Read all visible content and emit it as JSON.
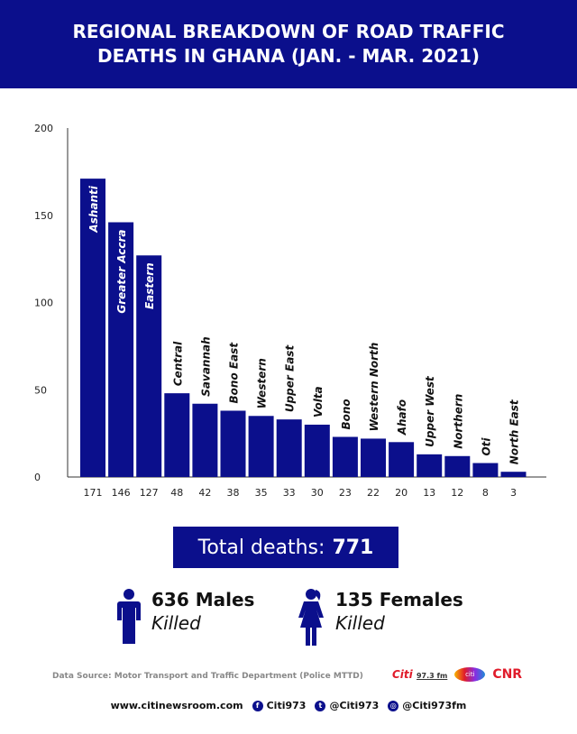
{
  "header": {
    "title_line1": "REGIONAL BREAKDOWN OF ROAD TRAFFIC",
    "title_line2": "DEATHS IN GHANA (JAN. - MAR. 2021)"
  },
  "colors": {
    "brand": "#0b0f8c"
  },
  "chart_data": {
    "type": "bar",
    "title": "REGIONAL BREAKDOWN OF ROAD TRAFFIC DEATHS IN GHANA (JAN. - MAR. 2021)",
    "categories": [
      "Ashanti",
      "Greater Accra",
      "Eastern",
      "Central",
      "Savannah",
      "Bono East",
      "Western",
      "Upper East",
      "Volta",
      "Bono",
      "Western North",
      "Ahafo",
      "Upper West",
      "Northern",
      "Oti",
      "North East"
    ],
    "values": [
      171,
      146,
      127,
      48,
      42,
      38,
      35,
      33,
      30,
      23,
      22,
      20,
      13,
      12,
      8,
      3
    ],
    "value_labels": [
      "171",
      "146",
      "127",
      "48",
      "42",
      "38",
      "35",
      "33",
      "30",
      "23",
      "22",
      "20",
      "13",
      "12",
      "8",
      "3"
    ],
    "yticks": [
      "0",
      "50",
      "100",
      "150",
      "200"
    ],
    "ylim": [
      0,
      200
    ],
    "grid": false,
    "bar_color": "#0b0f8c"
  },
  "summary": {
    "total_label": "Total deaths:",
    "total_value": "771"
  },
  "males": {
    "line1": "636 Males",
    "line2": "Killed"
  },
  "females": {
    "line1": "135 Females",
    "line2": "Killed"
  },
  "source": "Data Source: Motor Transport and Traffic Department (Police MTTD)",
  "logos": {
    "citi": "Citi",
    "citi_freq": "97.3 fm",
    "tv": "citi",
    "cnr": "CNR"
  },
  "footer": {
    "website": "www.citinewsroom.com",
    "facebook": "Citi973",
    "twitter": "@Citi973",
    "instagram": "@Citi973fm"
  }
}
